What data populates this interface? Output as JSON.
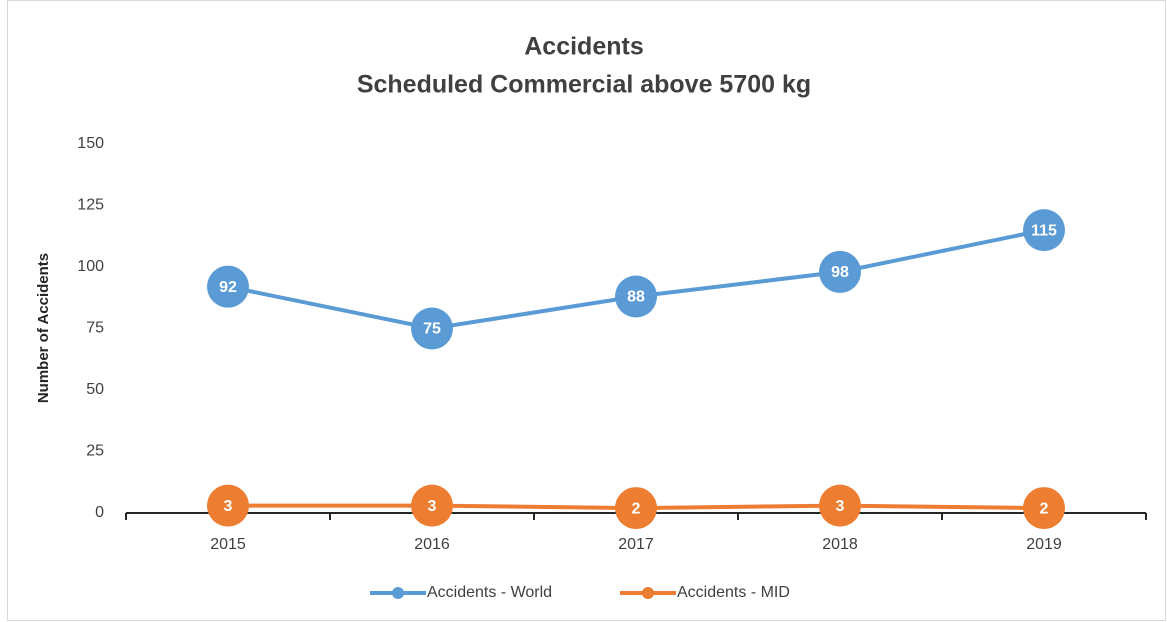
{
  "chart_data": {
    "type": "line",
    "title": "Accidents",
    "subtitle": "Scheduled Commercial above 5700 kg",
    "ylabel": "Number of Accidents",
    "categories": [
      "2015",
      "2016",
      "2017",
      "2018",
      "2019"
    ],
    "series": [
      {
        "name": "Accidents - World",
        "color": "#5b9bd5",
        "values": [
          92,
          75,
          88,
          98,
          115
        ]
      },
      {
        "name": "Accidents - MID",
        "color": "#ed7d31",
        "values": [
          3,
          3,
          2,
          3,
          2
        ]
      }
    ],
    "ylim": [
      0,
      150
    ],
    "yticks": [
      0,
      25,
      50,
      75,
      100,
      125,
      150
    ],
    "grid": false,
    "legend": "bottom"
  }
}
